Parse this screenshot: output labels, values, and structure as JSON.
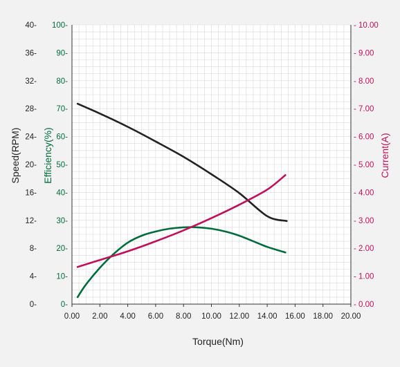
{
  "colors": {
    "background": "#f2f2f2",
    "plot_background": "#ffffff",
    "grid": "#d9d9d9",
    "axis": "#333333",
    "speed": "#222222",
    "efficiency": "#006b3c",
    "current": "#c0105a"
  },
  "chart_data": {
    "type": "line",
    "title": "",
    "xlabel": "Torque(Nm)",
    "xlim": [
      0,
      20
    ],
    "x_ticks": [
      "0.00",
      "2.00",
      "4.00",
      "6.00",
      "8.00",
      "10.00",
      "12.00",
      "14.00",
      "16.00",
      "18.00",
      "20.00"
    ],
    "grid": true,
    "axes": {
      "speed": {
        "label": "Speed(RPM)",
        "ylim": [
          0,
          40
        ],
        "ticks": [
          "0-",
          "4-",
          "8-",
          "12-",
          "16-",
          "20-",
          "24-",
          "28-",
          "32-",
          "36-",
          "40-"
        ]
      },
      "efficiency": {
        "label": "Efficiency(%)",
        "ylim": [
          0,
          100
        ],
        "ticks": [
          "0-",
          "10-",
          "20-",
          "30-",
          "40-",
          "50-",
          "60-",
          "70-",
          "80-",
          "90-",
          "100-"
        ]
      },
      "current": {
        "label": "Current(A)",
        "ylim": [
          0,
          10
        ],
        "ticks": [
          "- 0.00",
          "- 1.00",
          "- 2.00",
          "- 3.00",
          "- 4.00",
          "- 5.00",
          "- 6.00",
          "- 7.00",
          "- 8.00",
          "- 9.00",
          "- 10.00"
        ]
      }
    },
    "series": [
      {
        "axis": "speed",
        "points": [
          [
            0.4,
            28.7
          ],
          [
            2,
            27.3
          ],
          [
            4,
            25.4
          ],
          [
            6,
            23.3
          ],
          [
            8,
            21.1
          ],
          [
            10,
            18.6
          ],
          [
            12,
            15.9
          ],
          [
            14,
            12.6
          ],
          [
            15.4,
            11.9
          ]
        ]
      },
      {
        "axis": "efficiency",
        "points": [
          [
            0.4,
            2.5
          ],
          [
            1,
            7
          ],
          [
            2,
            13
          ],
          [
            3,
            18
          ],
          [
            4,
            22
          ],
          [
            5,
            24.5
          ],
          [
            6,
            26
          ],
          [
            7,
            27
          ],
          [
            8,
            27.5
          ],
          [
            9,
            27.5
          ],
          [
            10,
            27
          ],
          [
            11,
            26
          ],
          [
            12,
            24.5
          ],
          [
            13,
            22.5
          ],
          [
            14,
            20.5
          ],
          [
            15.3,
            18.5
          ]
        ]
      },
      {
        "axis": "current",
        "points": [
          [
            0.4,
            1.33
          ],
          [
            2,
            1.58
          ],
          [
            4,
            1.89
          ],
          [
            6,
            2.25
          ],
          [
            8,
            2.64
          ],
          [
            10,
            3.08
          ],
          [
            12,
            3.56
          ],
          [
            14,
            4.1
          ],
          [
            15.3,
            4.62
          ]
        ]
      }
    ]
  }
}
